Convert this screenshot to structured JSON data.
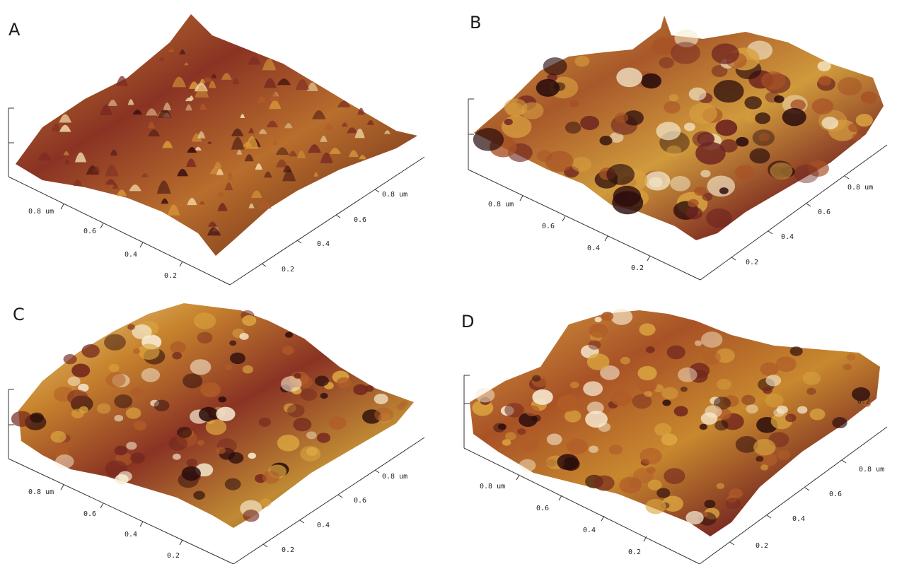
{
  "panels": [
    {
      "letter": "A",
      "left_axis": {
        "ticks": [
          "0.8 um",
          "0.6",
          "0.4",
          "0.2"
        ]
      },
      "right_axis": {
        "ticks": [
          "0.8 um",
          "0.6",
          "0.4",
          "0.2"
        ]
      },
      "surface": {
        "style": "fine-spiky",
        "colors": [
          "#3a0f0f",
          "#7a2a22",
          "#b05a28",
          "#d89a3a",
          "#f4e0b0"
        ]
      }
    },
    {
      "letter": "B",
      "left_axis": {
        "ticks": [
          "0.8 um",
          "0.6",
          "0.4",
          "0.2"
        ]
      },
      "right_axis": {
        "ticks": [
          "0.8 um",
          "0.6",
          "0.4",
          "0.2"
        ]
      },
      "surface": {
        "style": "broad-ridges",
        "colors": [
          "#2a0c0c",
          "#6e2420",
          "#a85226",
          "#d8a040",
          "#f6ecd0"
        ]
      }
    },
    {
      "letter": "C",
      "left_axis": {
        "ticks": [
          "0.8 um",
          "0.6",
          "0.4",
          "0.2"
        ]
      },
      "right_axis": {
        "ticks": [
          "0.8 um",
          "0.6",
          "0.4",
          "0.2"
        ]
      },
      "surface": {
        "style": "granular",
        "colors": [
          "#2a0c0c",
          "#74281e",
          "#b05c28",
          "#dca640",
          "#f8ecd4"
        ]
      }
    },
    {
      "letter": "D",
      "left_axis": {
        "ticks": [
          "0.8 um",
          "0.6",
          "0.4",
          "0.2"
        ]
      },
      "right_axis": {
        "ticks": [
          "0.8 um",
          "0.6",
          "0.4",
          "0.2"
        ]
      },
      "right_extra_label": "0.2",
      "surface": {
        "style": "granular",
        "colors": [
          "#2a0c0c",
          "#74281e",
          "#b05c28",
          "#dca640",
          "#f8ecd4"
        ]
      }
    }
  ]
}
